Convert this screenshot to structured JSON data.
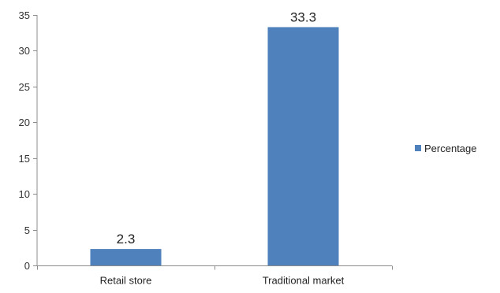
{
  "chart_data": {
    "type": "bar",
    "categories": [
      "Retail store",
      "Traditional market"
    ],
    "series": [
      {
        "name": "Percentage",
        "values": [
          2.3,
          33.3
        ],
        "color": "#4f81bd"
      }
    ],
    "data_labels": [
      "2.3",
      "33.3"
    ],
    "ylim": [
      0,
      35
    ],
    "yticks": [
      0,
      5,
      10,
      15,
      20,
      25,
      30,
      35
    ],
    "grid": false,
    "legend_position": "right"
  }
}
